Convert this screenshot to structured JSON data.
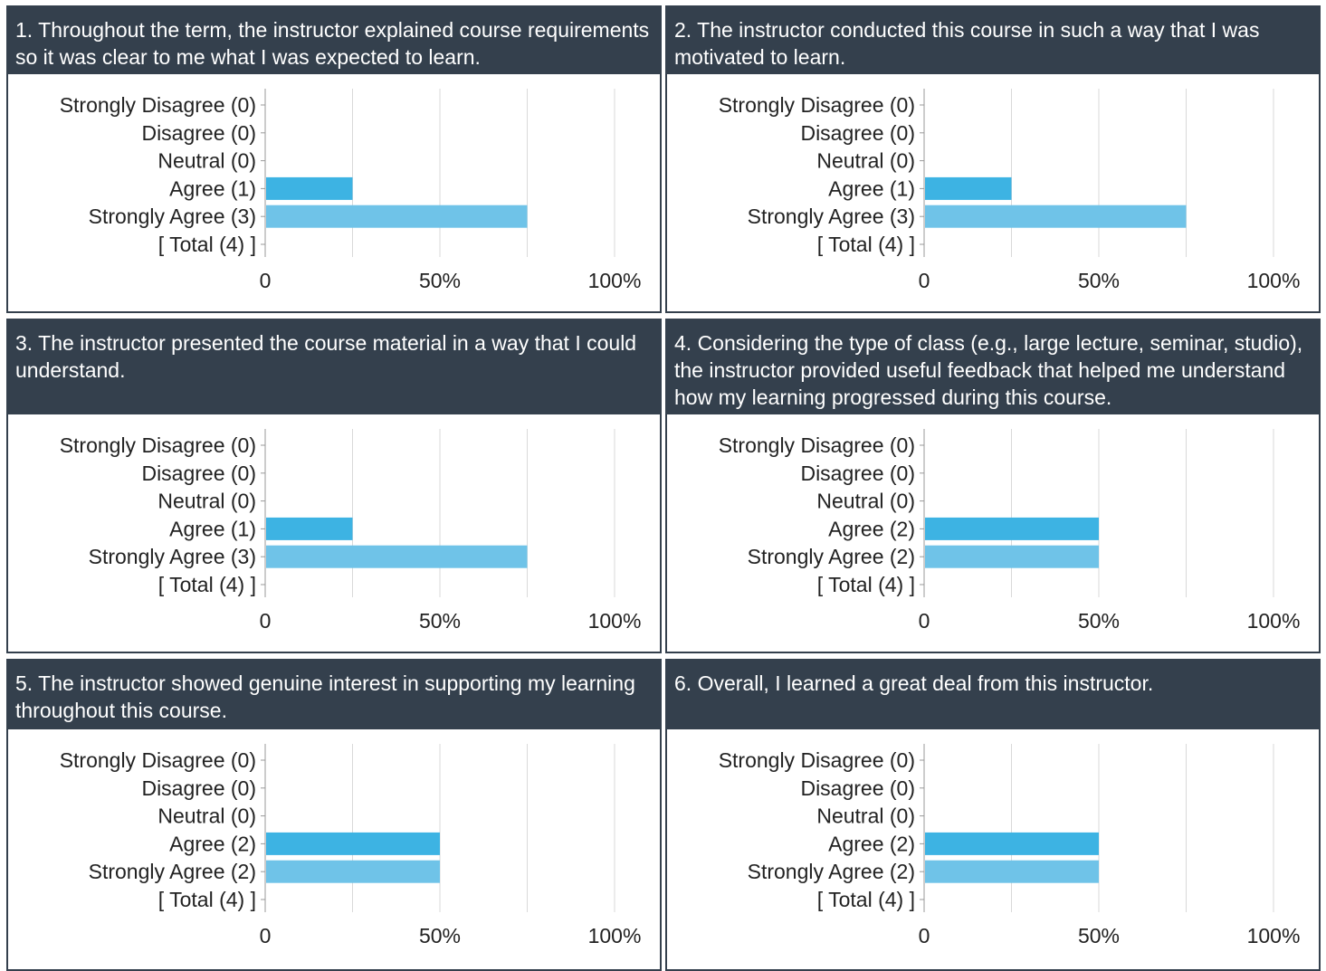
{
  "colors": {
    "header_bg": "#34404d",
    "agree_bar": "#3db3e3",
    "strongly_agree_bar": "#6fc3e8",
    "grid": "#d9d9d9",
    "axis": "#999999"
  },
  "panels": [
    {
      "title": "1. Throughout the term, the instructor explained course requirements so it was clear to me what I was expected to learn."
    },
    {
      "title": "2. The instructor conducted this course in such a way that I was motivated to learn."
    },
    {
      "title": "3. The instructor presented the course material in a way that I could understand."
    },
    {
      "title": "4. Considering the type of class (e.g., large lecture, seminar, studio), the instructor provided useful feedback that helped me understand how my learning progressed during this course."
    },
    {
      "title": "5. The instructor showed genuine interest in supporting my learning throughout this course."
    },
    {
      "title": "6. Overall, I learned a great deal from this instructor."
    }
  ],
  "chart_data": [
    {
      "type": "bar",
      "orientation": "horizontal",
      "categories": [
        "Strongly Disagree (0)",
        "Disagree (0)",
        "Neutral (0)",
        "Agree (1)",
        "Strongly Agree (3)",
        "[ Total (4) ]"
      ],
      "values": [
        0,
        0,
        0,
        25,
        75,
        null
      ],
      "xlim": [
        0,
        100
      ],
      "xticks": [
        "0",
        "50%",
        "100%"
      ],
      "grid": true
    },
    {
      "type": "bar",
      "orientation": "horizontal",
      "categories": [
        "Strongly Disagree (0)",
        "Disagree (0)",
        "Neutral (0)",
        "Agree (1)",
        "Strongly Agree (3)",
        "[ Total (4) ]"
      ],
      "values": [
        0,
        0,
        0,
        25,
        75,
        null
      ],
      "xlim": [
        0,
        100
      ],
      "xticks": [
        "0",
        "50%",
        "100%"
      ],
      "grid": true
    },
    {
      "type": "bar",
      "orientation": "horizontal",
      "categories": [
        "Strongly Disagree (0)",
        "Disagree (0)",
        "Neutral (0)",
        "Agree (1)",
        "Strongly Agree (3)",
        "[ Total (4) ]"
      ],
      "values": [
        0,
        0,
        0,
        25,
        75,
        null
      ],
      "xlim": [
        0,
        100
      ],
      "xticks": [
        "0",
        "50%",
        "100%"
      ],
      "grid": true
    },
    {
      "type": "bar",
      "orientation": "horizontal",
      "categories": [
        "Strongly Disagree (0)",
        "Disagree (0)",
        "Neutral (0)",
        "Agree (2)",
        "Strongly Agree (2)",
        "[ Total (4) ]"
      ],
      "values": [
        0,
        0,
        0,
        50,
        50,
        null
      ],
      "xlim": [
        0,
        100
      ],
      "xticks": [
        "0",
        "50%",
        "100%"
      ],
      "grid": true
    },
    {
      "type": "bar",
      "orientation": "horizontal",
      "categories": [
        "Strongly Disagree (0)",
        "Disagree (0)",
        "Neutral (0)",
        "Agree (2)",
        "Strongly Agree (2)",
        "[ Total (4) ]"
      ],
      "values": [
        0,
        0,
        0,
        50,
        50,
        null
      ],
      "xlim": [
        0,
        100
      ],
      "xticks": [
        "0",
        "50%",
        "100%"
      ],
      "grid": true
    },
    {
      "type": "bar",
      "orientation": "horizontal",
      "categories": [
        "Strongly Disagree (0)",
        "Disagree (0)",
        "Neutral (0)",
        "Agree (2)",
        "Strongly Agree (2)",
        "[ Total (4) ]"
      ],
      "values": [
        0,
        0,
        0,
        50,
        50,
        null
      ],
      "xlim": [
        0,
        100
      ],
      "xticks": [
        "0",
        "50%",
        "100%"
      ],
      "grid": true
    }
  ]
}
